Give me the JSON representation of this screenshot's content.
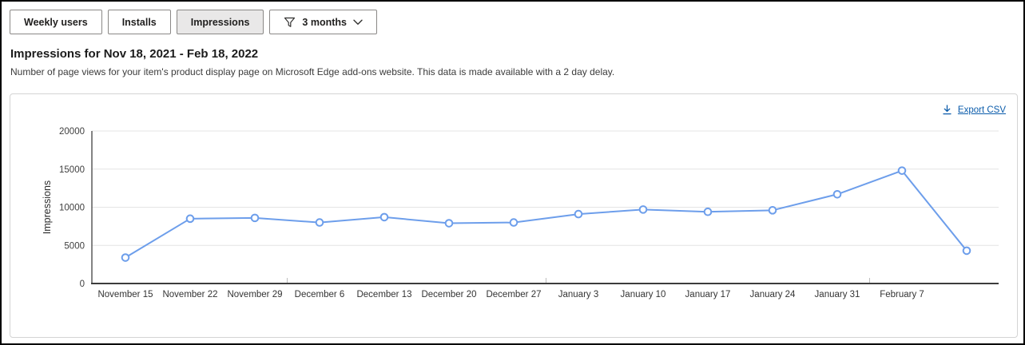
{
  "toolbar": {
    "metric_buttons": [
      {
        "label": "Weekly users",
        "active": false
      },
      {
        "label": "Installs",
        "active": false
      },
      {
        "label": "Impressions",
        "active": true
      }
    ],
    "filter_dropdown": {
      "label": "3 months",
      "icon": "filter-funnel-icon",
      "chevron": "chevron-down-icon"
    }
  },
  "header": {
    "title": "Impressions for Nov 18, 2021 - Feb 18, 2022",
    "subtitle": "Number of page views for your item's product display page on Microsoft Edge add-ons website. This data is made available with a 2 day delay."
  },
  "chart_card": {
    "export_label": "Export CSV",
    "export_icon": "download-icon"
  },
  "chart_data": {
    "type": "line",
    "title": "",
    "xlabel": "",
    "ylabel": "Impressions",
    "ylim": [
      0,
      20000
    ],
    "y_ticks": [
      0,
      5000,
      10000,
      15000,
      20000
    ],
    "categories": [
      "November 15",
      "November 22",
      "November 29",
      "December 6",
      "December 13",
      "December 20",
      "December 27",
      "January 3",
      "January 10",
      "January 17",
      "January 24",
      "January 31",
      "February 7"
    ],
    "values": [
      3400,
      8500,
      8600,
      8000,
      8700,
      7900,
      8000,
      9100,
      9700,
      9400,
      9600,
      11700,
      14800,
      4300
    ],
    "unlabeled_trailing_points": 1,
    "month_boundary_after_index": [
      2,
      6,
      11
    ],
    "legend": "none",
    "grid": "horizontal",
    "line_color": "#6d9eeb",
    "marker": "open-circle"
  },
  "colors": {
    "accent_line": "#6d9eeb",
    "link_blue": "#0b5cab",
    "grid_line": "#e4e4e4",
    "x_axis_line": "#3c3c3c",
    "y_axis_line": "#5a5a5a",
    "tick_label": "#404040",
    "month_tick": "#bdbdbd"
  }
}
